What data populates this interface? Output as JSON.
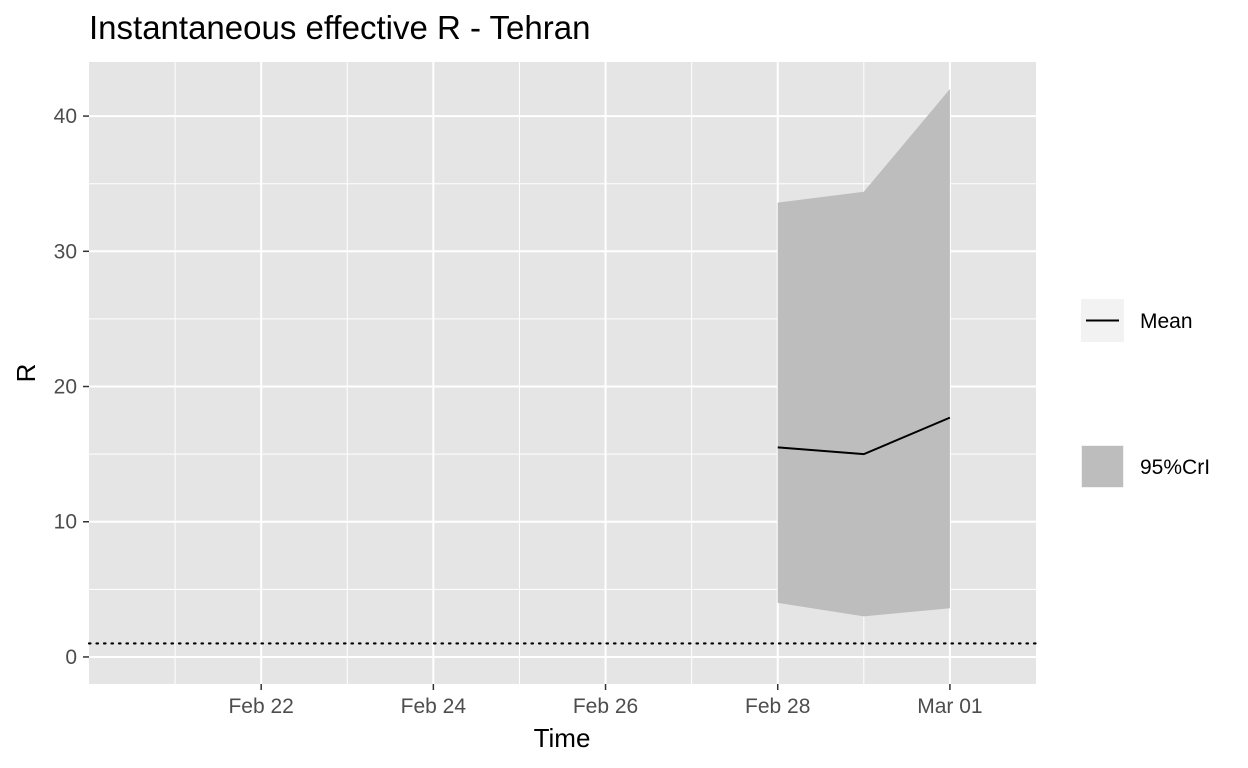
{
  "chart_data": {
    "type": "line",
    "title": "Instantaneous effective R -  Tehran",
    "xlabel": "Time",
    "ylabel": "R",
    "x_range": [
      "2020-02-20",
      "2020-03-02"
    ],
    "ylim": [
      -2,
      44
    ],
    "x_ticks": [
      {
        "date": "2020-02-22",
        "label": "Feb 22"
      },
      {
        "date": "2020-02-24",
        "label": "Feb 24"
      },
      {
        "date": "2020-02-26",
        "label": "Feb 26"
      },
      {
        "date": "2020-02-28",
        "label": "Feb 28"
      },
      {
        "date": "2020-03-01",
        "label": "Mar 01"
      }
    ],
    "y_ticks": [
      0,
      10,
      20,
      30,
      40
    ],
    "grid": true,
    "background": "#e5e5e5",
    "series": [
      {
        "name": "Mean",
        "kind": "line",
        "color": "#000000",
        "x": [
          "2020-02-28",
          "2020-02-29",
          "2020-03-01"
        ],
        "values": [
          15.5,
          15.0,
          17.7
        ]
      },
      {
        "name": "95%CrI",
        "kind": "ribbon",
        "color": "#bdbdbd",
        "x": [
          "2020-02-28",
          "2020-02-29",
          "2020-03-01"
        ],
        "lower": [
          4.0,
          3.0,
          3.6
        ],
        "upper": [
          33.6,
          34.4,
          42.0
        ]
      }
    ],
    "reference_line": {
      "y": 1,
      "style": "dotted",
      "color": "#000000"
    },
    "legend": {
      "position": "right",
      "entries": [
        "Mean",
        "95%CrI"
      ]
    }
  }
}
